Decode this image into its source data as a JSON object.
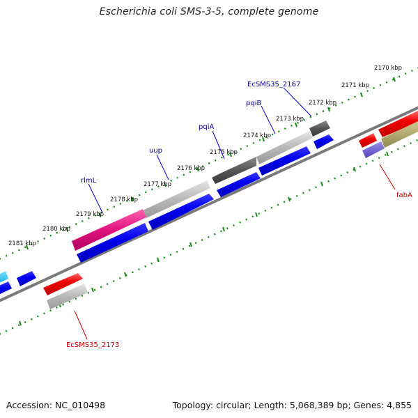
{
  "title": "Escherichia coli SMS-3-5, complete genome",
  "footer": {
    "accession": "Accession: NC_010498",
    "summary": "Topology: circular; Length: 5,068,389 bp; Genes: 4,855"
  },
  "colors": {
    "backbone": "#808080",
    "tick": "#1a8a1a",
    "forward_label": "#00008b",
    "reverse_label": "#cc0000",
    "blue_feature": "#0000ee",
    "red_feature": "#ee0000",
    "pink_feature": "#e0147f",
    "gray_feature": "#b0b0b0",
    "dark_gray_feature": "#555555",
    "cyan_feature": "#00bfff",
    "purple_feature": "#6655cc",
    "olive_feature": "#a8a060"
  },
  "ticks": [
    "2170 kbp",
    "2171 kbp",
    "2172 kbp",
    "2173 kbp",
    "2174 kbp",
    "2175 kbp",
    "2176 kbp",
    "2177 kbp",
    "2178 kbp",
    "2179 kbp",
    "2180 kbp",
    "2181 kbp"
  ],
  "gene_labels_forward": [
    "EcSMS35_2167",
    "pqiB",
    "pqiA",
    "uup",
    "rlmL"
  ],
  "gene_labels_reverse": [
    "fabA",
    "EcSMS35_2173"
  ]
}
